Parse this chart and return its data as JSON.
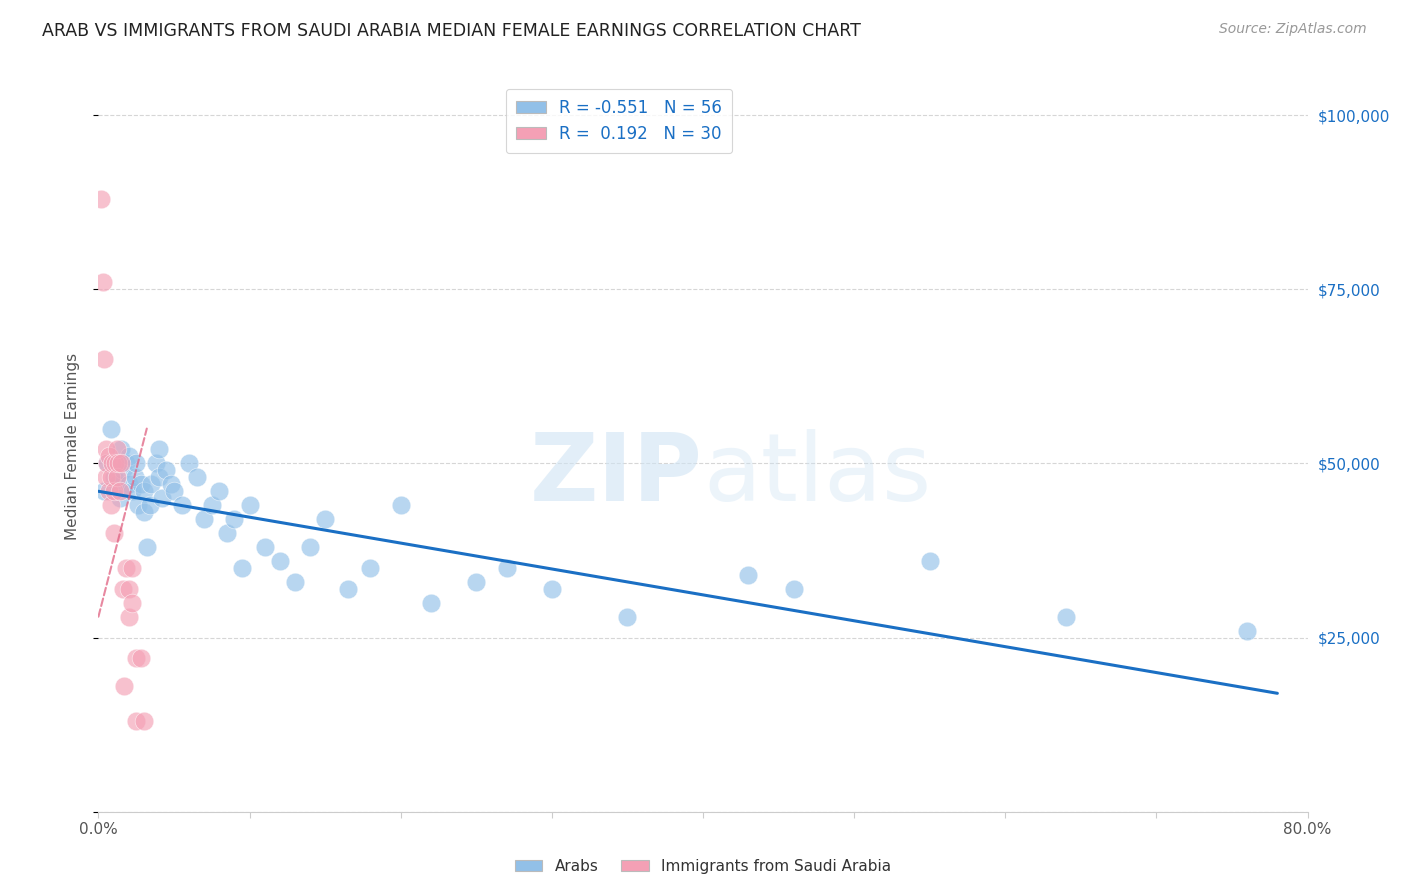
{
  "title": "ARAB VS IMMIGRANTS FROM SAUDI ARABIA MEDIAN FEMALE EARNINGS CORRELATION CHART",
  "source": "Source: ZipAtlas.com",
  "ylabel": "Median Female Earnings",
  "xmin": 0.0,
  "xmax": 0.8,
  "ymin": 0,
  "ymax": 105000,
  "yticks": [
    0,
    25000,
    50000,
    75000,
    100000
  ],
  "ytick_labels": [
    "",
    "$25,000",
    "$50,000",
    "$75,000",
    "$100,000"
  ],
  "xtick_positions": [
    0.0,
    0.1,
    0.2,
    0.3,
    0.4,
    0.5,
    0.6,
    0.7,
    0.8
  ],
  "xtick_labels": [
    "0.0%",
    "",
    "",
    "",
    "",
    "",
    "",
    "",
    "80.0%"
  ],
  "blue_R": -0.551,
  "blue_N": 56,
  "pink_R": 0.192,
  "pink_N": 30,
  "blue_color": "#92C0E8",
  "pink_color": "#F4A0B5",
  "blue_line_color": "#1A6FC4",
  "pink_line_color": "#E06080",
  "blue_scatter_x": [
    0.004,
    0.006,
    0.008,
    0.01,
    0.012,
    0.014,
    0.015,
    0.016,
    0.018,
    0.02,
    0.02,
    0.022,
    0.024,
    0.025,
    0.026,
    0.028,
    0.03,
    0.03,
    0.032,
    0.034,
    0.035,
    0.038,
    0.04,
    0.04,
    0.042,
    0.045,
    0.048,
    0.05,
    0.055,
    0.06,
    0.065,
    0.07,
    0.075,
    0.08,
    0.085,
    0.09,
    0.095,
    0.1,
    0.11,
    0.12,
    0.13,
    0.14,
    0.15,
    0.165,
    0.18,
    0.2,
    0.22,
    0.25,
    0.27,
    0.3,
    0.35,
    0.43,
    0.46,
    0.55,
    0.64,
    0.76
  ],
  "blue_scatter_y": [
    46000,
    50000,
    55000,
    48000,
    47000,
    45000,
    52000,
    49000,
    50000,
    47000,
    51000,
    46000,
    48000,
    50000,
    44000,
    47000,
    43000,
    46000,
    38000,
    44000,
    47000,
    50000,
    48000,
    52000,
    45000,
    49000,
    47000,
    46000,
    44000,
    50000,
    48000,
    42000,
    44000,
    46000,
    40000,
    42000,
    35000,
    44000,
    38000,
    36000,
    33000,
    38000,
    42000,
    32000,
    35000,
    44000,
    30000,
    33000,
    35000,
    32000,
    28000,
    34000,
    32000,
    36000,
    28000,
    26000
  ],
  "pink_scatter_x": [
    0.002,
    0.003,
    0.004,
    0.005,
    0.005,
    0.006,
    0.007,
    0.007,
    0.008,
    0.008,
    0.009,
    0.01,
    0.01,
    0.011,
    0.012,
    0.012,
    0.013,
    0.014,
    0.015,
    0.016,
    0.017,
    0.018,
    0.02,
    0.02,
    0.022,
    0.022,
    0.025,
    0.025,
    0.028,
    0.03
  ],
  "pink_scatter_y": [
    88000,
    76000,
    65000,
    52000,
    48000,
    50000,
    46000,
    51000,
    48000,
    44000,
    50000,
    40000,
    46000,
    50000,
    52000,
    48000,
    50000,
    46000,
    50000,
    32000,
    18000,
    35000,
    28000,
    32000,
    30000,
    35000,
    13000,
    22000,
    22000,
    13000
  ],
  "blue_line_x": [
    0.0,
    0.78
  ],
  "blue_line_y": [
    46000,
    17000
  ],
  "pink_line_x": [
    0.0,
    0.032
  ],
  "pink_line_y": [
    28000,
    55000
  ],
  "background_color": "#FFFFFF",
  "grid_color": "#CCCCCC"
}
